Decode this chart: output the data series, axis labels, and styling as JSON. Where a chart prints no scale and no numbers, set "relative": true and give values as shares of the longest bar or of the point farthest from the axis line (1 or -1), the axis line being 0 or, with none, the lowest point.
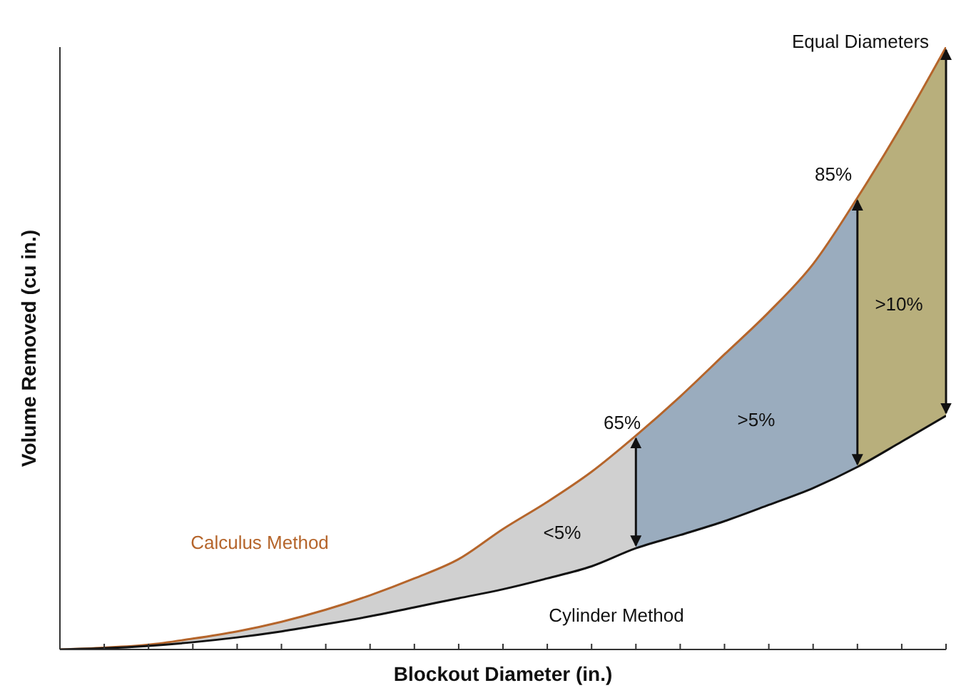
{
  "chart_data": {
    "type": "line",
    "relative": true,
    "xlabel": "Blockout Diameter (in.)",
    "ylabel": "Volume Removed (cu in.)",
    "legend": false,
    "grid": false,
    "marker": "none",
    "line_style": "solid",
    "categories": [
      null,
      null,
      null,
      null,
      null,
      null,
      null,
      null,
      null,
      null,
      null,
      null,
      null,
      null,
      null,
      null,
      null,
      null,
      null,
      null,
      null
    ],
    "series": [
      {
        "type": "area",
        "color": "#d0d0d0",
        "values": [
          0,
          0.003,
          0.008,
          0.018,
          0.03,
          0.046,
          0.066,
          0.09,
          0.118,
          0.15,
          0.2,
          0.245,
          0.295,
          0.355,
          null,
          null,
          null,
          null,
          null,
          null,
          null
        ]
      },
      {
        "type": "area",
        "color": "#9aacbe",
        "values": [
          null,
          null,
          null,
          null,
          null,
          null,
          null,
          null,
          null,
          null,
          null,
          null,
          null,
          0.355,
          0.42,
          0.49,
          0.56,
          0.64,
          0.75,
          null,
          null
        ]
      },
      {
        "type": "area",
        "color": "#b8af7c",
        "values": [
          null,
          null,
          null,
          null,
          null,
          null,
          null,
          null,
          null,
          null,
          null,
          null,
          null,
          null,
          null,
          null,
          null,
          null,
          0.75,
          0.87,
          1
        ]
      },
      {
        "name": "Calculus Method",
        "color": "#b5652b",
        "values": [
          0,
          0.003,
          0.008,
          0.018,
          0.03,
          0.046,
          0.066,
          0.09,
          0.118,
          0.15,
          0.2,
          0.245,
          0.295,
          0.355,
          0.42,
          0.49,
          0.56,
          0.64,
          0.75,
          0.87,
          1
        ]
      },
      {
        "name": "Cylinder Method",
        "color": "#111111",
        "values": [
          0,
          0.002,
          0.006,
          0.012,
          0.02,
          0.03,
          0.042,
          0.055,
          0.07,
          0.085,
          0.1,
          0.118,
          0.138,
          0.168,
          0.19,
          0.213,
          0.24,
          0.268,
          0.303,
          0.345,
          0.388
        ]
      }
    ],
    "annotations": [
      "Equal Diameters",
      "85%",
      "65%",
      ">10%",
      ">5%",
      "<5%"
    ]
  }
}
